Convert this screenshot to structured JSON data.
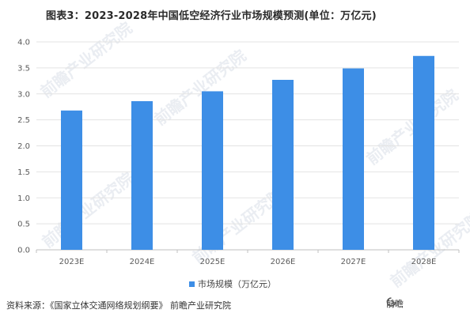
{
  "title": "图表3：2023-2028年中国低空经济行业市场规模预测(单位：万亿元)",
  "chart_data": {
    "type": "bar",
    "categories": [
      "2023E",
      "2024E",
      "2025E",
      "2026E",
      "2027E",
      "2028E"
    ],
    "series": [
      {
        "name": "市场规模（万亿元）",
        "values": [
          2.68,
          2.86,
          3.05,
          3.27,
          3.49,
          3.73
        ]
      }
    ],
    "ylim": [
      0,
      4.0
    ],
    "yticks": [
      "0.0",
      "0.5",
      "1.0",
      "1.5",
      "2.0",
      "2.5",
      "3.0",
      "3.5",
      "4.0"
    ],
    "grid": true,
    "legend_position": "bottom",
    "bar_color": "#3d8ee6"
  },
  "source": "资料来源：《国家立体交通网络规划纲要》 前瞻产业研究院",
  "brand": "前瞻",
  "brand_icon": "qianzhan-logo-icon",
  "watermark": "前瞻产业研究院"
}
